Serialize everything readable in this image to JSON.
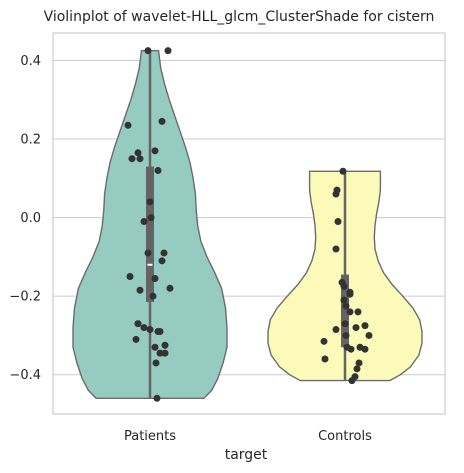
{
  "chart_data": {
    "type": "violin",
    "title": "Violinplot of wavelet-HLL_glcm_ClusterShade for cistern",
    "xlabel": "target",
    "ylabel": "",
    "ylim": [
      -0.5,
      0.47
    ],
    "yticks": [
      0.4,
      0.2,
      0.0,
      -0.2,
      -0.4
    ],
    "ytick_labels": [
      "0.4",
      "0.2",
      "0.0",
      "−0.2",
      "−0.4"
    ],
    "grid": "horizontal",
    "categories": [
      "Patients",
      "Controls"
    ],
    "colors": {
      "Patients": "#96cbc2",
      "Controls": "#fbfab8",
      "outline": "#6b6b6b",
      "box": "#646464",
      "points": "#333333",
      "grid": "#cccccc",
      "median": "#ffffff"
    },
    "violins": [
      {
        "name": "Patients",
        "min": -0.46,
        "max": 0.425,
        "q1": -0.215,
        "median": -0.12,
        "q3": 0.13,
        "density": [
          [
            -0.46,
            0.7
          ],
          [
            -0.44,
            0.8
          ],
          [
            -0.41,
            0.88
          ],
          [
            -0.37,
            0.95
          ],
          [
            -0.33,
            1.0
          ],
          [
            -0.28,
            1.0
          ],
          [
            -0.23,
            0.98
          ],
          [
            -0.18,
            0.93
          ],
          [
            -0.14,
            0.84
          ],
          [
            -0.1,
            0.74
          ],
          [
            -0.06,
            0.66
          ],
          [
            -0.02,
            0.62
          ],
          [
            0.02,
            0.6
          ],
          [
            0.06,
            0.59
          ],
          [
            0.1,
            0.56
          ],
          [
            0.14,
            0.52
          ],
          [
            0.18,
            0.46
          ],
          [
            0.22,
            0.39
          ],
          [
            0.26,
            0.32
          ],
          [
            0.3,
            0.25
          ],
          [
            0.34,
            0.19
          ],
          [
            0.38,
            0.14
          ],
          [
            0.425,
            0.11
          ]
        ],
        "points": [
          [
            -0.02,
            0.425
          ],
          [
            0.18,
            0.425
          ],
          [
            -0.22,
            0.235
          ],
          [
            0.12,
            0.245
          ],
          [
            -0.12,
            0.165
          ],
          [
            0.05,
            0.17
          ],
          [
            -0.18,
            0.15
          ],
          [
            -0.1,
            0.15
          ],
          [
            0.08,
            0.12
          ],
          [
            0.0,
            0.04
          ],
          [
            -0.06,
            -0.01
          ],
          [
            0.01,
            0.0
          ],
          [
            -0.02,
            -0.09
          ],
          [
            0.14,
            -0.09
          ],
          [
            0.12,
            -0.11
          ],
          [
            -0.2,
            -0.15
          ],
          [
            0.05,
            -0.155
          ],
          [
            -0.1,
            -0.185
          ],
          [
            0.2,
            -0.18
          ],
          [
            0.03,
            -0.2
          ],
          [
            -0.12,
            -0.27
          ],
          [
            -0.06,
            -0.28
          ],
          [
            0.0,
            -0.285
          ],
          [
            0.08,
            -0.29
          ],
          [
            0.1,
            -0.29
          ],
          [
            -0.14,
            -0.31
          ],
          [
            0.05,
            -0.33
          ],
          [
            0.15,
            -0.325
          ],
          [
            0.1,
            -0.345
          ],
          [
            0.15,
            -0.345
          ],
          [
            0.06,
            -0.37
          ],
          [
            0.07,
            -0.46
          ]
        ]
      },
      {
        "name": "Controls",
        "min": -0.415,
        "max": 0.118,
        "q1": -0.33,
        "median": -0.265,
        "q3": -0.145,
        "density": [
          [
            -0.415,
            0.58
          ],
          [
            -0.4,
            0.72
          ],
          [
            -0.38,
            0.85
          ],
          [
            -0.35,
            0.96
          ],
          [
            -0.32,
            1.0
          ],
          [
            -0.29,
            1.0
          ],
          [
            -0.26,
            0.97
          ],
          [
            -0.23,
            0.88
          ],
          [
            -0.2,
            0.75
          ],
          [
            -0.17,
            0.61
          ],
          [
            -0.14,
            0.5
          ],
          [
            -0.11,
            0.43
          ],
          [
            -0.08,
            0.39
          ],
          [
            -0.05,
            0.38
          ],
          [
            -0.02,
            0.39
          ],
          [
            0.01,
            0.41
          ],
          [
            0.04,
            0.44
          ],
          [
            0.07,
            0.46
          ],
          [
            0.1,
            0.46
          ],
          [
            0.118,
            0.46
          ]
        ],
        "points": [
          [
            -0.02,
            0.118
          ],
          [
            -0.08,
            0.07
          ],
          [
            -0.09,
            0.06
          ],
          [
            -0.07,
            -0.01
          ],
          [
            -0.09,
            -0.08
          ],
          [
            -0.03,
            -0.165
          ],
          [
            0.05,
            -0.195
          ],
          [
            -0.01,
            -0.175
          ],
          [
            0.05,
            -0.19
          ],
          [
            -0.01,
            -0.21
          ],
          [
            0.01,
            -0.225
          ],
          [
            0.05,
            -0.24
          ],
          [
            0.13,
            -0.24
          ],
          [
            0.0,
            -0.27
          ],
          [
            0.2,
            -0.275
          ],
          [
            -0.09,
            -0.285
          ],
          [
            0.11,
            -0.28
          ],
          [
            0.24,
            -0.3
          ],
          [
            0.01,
            -0.3
          ],
          [
            -0.21,
            -0.315
          ],
          [
            0.02,
            -0.33
          ],
          [
            0.06,
            -0.335
          ],
          [
            0.15,
            -0.33
          ],
          [
            0.2,
            -0.335
          ],
          [
            -0.2,
            -0.36
          ],
          [
            0.14,
            -0.37
          ],
          [
            0.12,
            -0.385
          ],
          [
            0.1,
            -0.405
          ],
          [
            0.07,
            -0.415
          ]
        ]
      }
    ]
  }
}
